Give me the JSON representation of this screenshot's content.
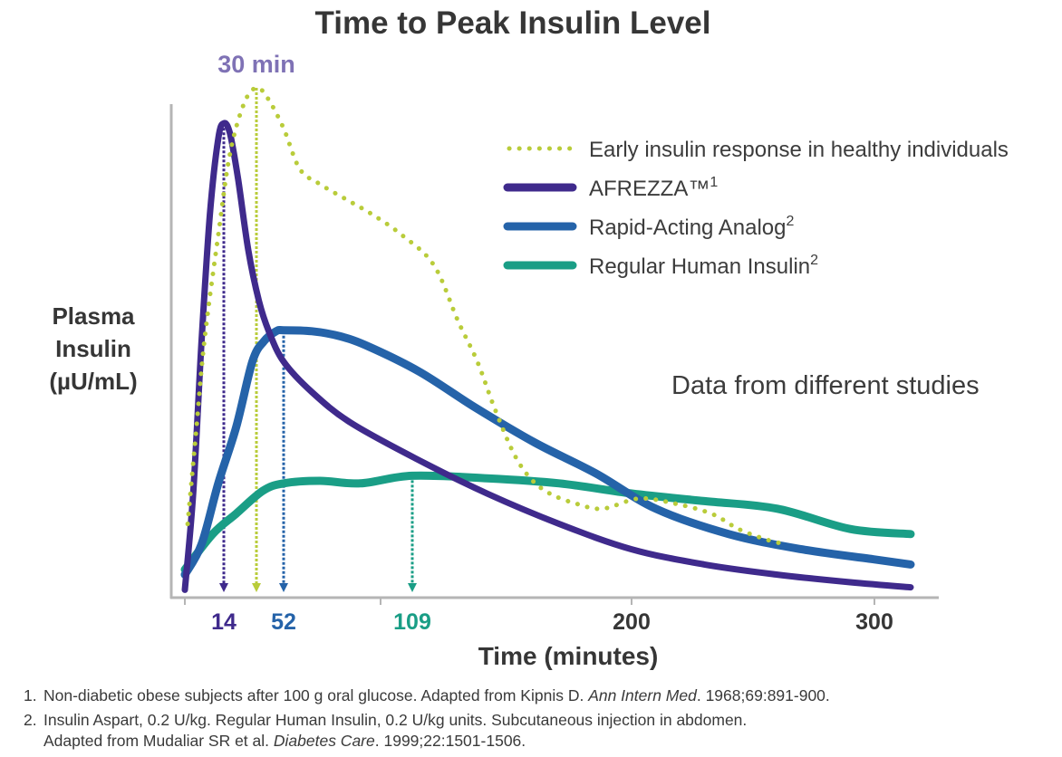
{
  "chart_data": {
    "type": "line",
    "title": "Time to Peak Insulin Level",
    "xlabel": "Time (minutes)",
    "ylabel_lines": [
      "Plasma",
      "Insulin",
      "(µU/mL)"
    ],
    "xlim": [
      0,
      320
    ],
    "ylim": [
      0,
      100
    ],
    "y_units": "relative (no y tick labels shown)",
    "grid": false,
    "legend_position": "top-right",
    "x_ticks": [
      {
        "value": 0,
        "label": ""
      },
      {
        "value": 100,
        "label": ""
      },
      {
        "value": 200,
        "label": "200",
        "color": "#363636"
      },
      {
        "value": 300,
        "label": "300",
        "color": "#363636"
      }
    ],
    "peak_markers": [
      {
        "series": "AFREZZA",
        "time": 14,
        "label": "14",
        "color": "#3f2a8c",
        "level": 93
      },
      {
        "series": "Early insulin response in healthy individuals",
        "time": 30,
        "label": "30 min",
        "label_position": "top",
        "color": "#b9cc3a",
        "level": 100
      },
      {
        "series": "Rapid-Acting Analog",
        "time": 52,
        "label": "52",
        "color": "#2563a9",
        "level": 52
      },
      {
        "series": "Regular Human Insulin",
        "time": 109,
        "label": "109",
        "color": "#1a9e86",
        "level": 23.5
      }
    ],
    "annotation": "Data from different studies",
    "series": [
      {
        "name": "Early insulin response in healthy individuals",
        "sup": "",
        "style": "dotted",
        "color": "#b9cc3a",
        "points": [
          [
            1,
            14
          ],
          [
            4,
            32
          ],
          [
            7,
            50
          ],
          [
            12,
            71
          ],
          [
            17,
            87
          ],
          [
            24,
            97
          ],
          [
            30,
            100
          ],
          [
            39,
            98
          ],
          [
            52,
            92
          ],
          [
            60,
            84
          ],
          [
            70,
            81
          ],
          [
            83,
            78
          ],
          [
            96,
            75
          ],
          [
            106,
            71
          ],
          [
            118,
            65
          ],
          [
            128,
            54
          ],
          [
            136,
            46
          ],
          [
            143,
            37
          ],
          [
            151,
            28
          ],
          [
            158,
            23
          ],
          [
            166,
            20
          ],
          [
            177,
            18
          ],
          [
            188,
            17
          ],
          [
            203,
            19
          ],
          [
            218,
            18
          ],
          [
            233,
            16
          ],
          [
            244,
            13
          ],
          [
            255,
            11
          ],
          [
            263,
            10
          ]
        ]
      },
      {
        "name": "AFREZZA™",
        "sup": "1",
        "style": "solid",
        "color": "#3f2a8c",
        "points": [
          [
            0,
            1
          ],
          [
            3,
            20
          ],
          [
            6,
            50
          ],
          [
            9,
            75
          ],
          [
            12,
            90
          ],
          [
            14,
            93
          ],
          [
            17,
            91
          ],
          [
            21,
            82
          ],
          [
            26,
            68
          ],
          [
            32,
            58
          ],
          [
            40,
            52
          ],
          [
            52,
            46
          ],
          [
            66,
            40
          ],
          [
            85,
            34
          ],
          [
            110,
            27
          ],
          [
            140,
            20
          ],
          [
            170,
            14
          ],
          [
            200,
            9
          ],
          [
            230,
            6
          ],
          [
            260,
            4
          ],
          [
            290,
            2.5
          ],
          [
            315,
            1.5
          ]
        ]
      },
      {
        "name": "Rapid-Acting Analog",
        "sup": "2",
        "style": "solid",
        "color": "#2563a9",
        "points": [
          [
            0,
            4
          ],
          [
            6,
            10
          ],
          [
            12,
            22
          ],
          [
            20,
            33
          ],
          [
            28,
            46
          ],
          [
            36,
            50
          ],
          [
            46,
            52
          ],
          [
            52,
            52.2
          ],
          [
            66,
            52
          ],
          [
            80,
            51
          ],
          [
            94,
            49
          ],
          [
            112,
            44
          ],
          [
            135,
            37
          ],
          [
            160,
            30
          ],
          [
            185,
            24
          ],
          [
            210,
            17
          ],
          [
            240,
            12
          ],
          [
            270,
            9
          ],
          [
            300,
            7
          ],
          [
            315,
            6
          ]
        ]
      },
      {
        "name": "Regular Human Insulin",
        "sup": "2",
        "style": "solid",
        "color": "#1a9e86",
        "points": [
          [
            0,
            5
          ],
          [
            10,
            12
          ],
          [
            20,
            16
          ],
          [
            35,
            20.5
          ],
          [
            52,
            22
          ],
          [
            70,
            22.5
          ],
          [
            90,
            22
          ],
          [
            109,
            23.5
          ],
          [
            140,
            23
          ],
          [
            170,
            22
          ],
          [
            200,
            20
          ],
          [
            230,
            18.5
          ],
          [
            260,
            17
          ],
          [
            290,
            13
          ],
          [
            315,
            12
          ]
        ]
      }
    ]
  },
  "footnotes": [
    {
      "num": "1.",
      "parts": [
        {
          "text": "Non-diabetic obese subjects after 100 g oral glucose. Adapted from Kipnis D. ",
          "italic": false
        },
        {
          "text": "Ann Intern Med",
          "italic": true
        },
        {
          "text": ". 1968;69:891-900.",
          "italic": false
        }
      ]
    },
    {
      "num": "2.",
      "parts": [
        {
          "text": "Insulin Aspart, 0.2 U/kg. Regular Human Insulin, 0.2 U/kg units. Subcutaneous injection in abdomen.",
          "italic": false
        }
      ],
      "continuation": [
        {
          "text": "Adapted from Mudaliar SR et al. ",
          "italic": false
        },
        {
          "text": "Diabetes Care",
          "italic": true
        },
        {
          "text": ". 1999;22:1501-1506.",
          "italic": false
        }
      ]
    }
  ]
}
